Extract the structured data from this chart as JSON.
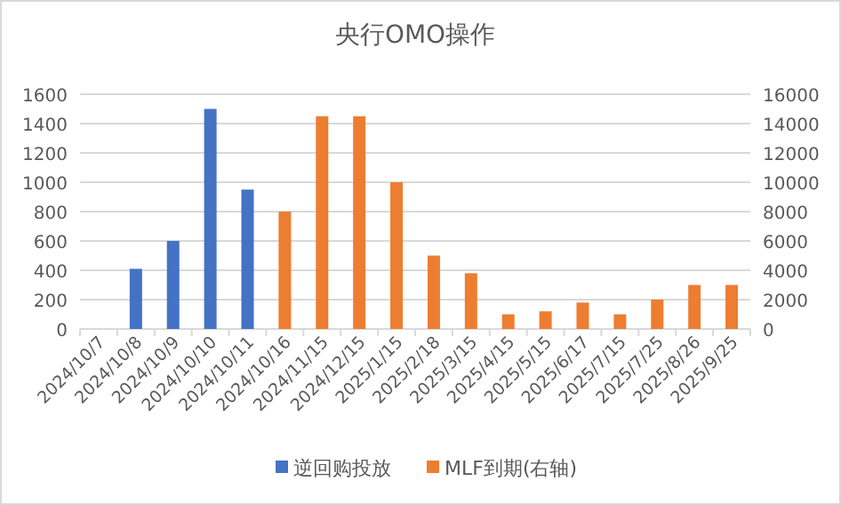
{
  "chart_data": {
    "type": "bar",
    "title": "央行OMO操作",
    "categories": [
      "2024/10/7",
      "2024/10/8",
      "2024/10/9",
      "2024/10/10",
      "2024/10/11",
      "2024/10/16",
      "2024/11/15",
      "2024/12/15",
      "2025/1/15",
      "2025/2/18",
      "2025/3/15",
      "2025/4/15",
      "2025/5/15",
      "2025/6/17",
      "2025/7/15",
      "2025/7/25",
      "2025/8/26",
      "2025/9/25"
    ],
    "series": [
      {
        "name": "逆回购投放",
        "color": "#4472c4",
        "values": [
          null,
          410,
          600,
          1500,
          950,
          null,
          null,
          null,
          null,
          null,
          null,
          null,
          null,
          null,
          null,
          null,
          null,
          null
        ]
      },
      {
        "name": "MLF到期(右轴)",
        "color": "#ed7d31",
        "axis": "y2",
        "values": [
          null,
          null,
          null,
          null,
          null,
          8000,
          14500,
          14500,
          10000,
          5000,
          3800,
          1000,
          1200,
          1800,
          1000,
          2000,
          3000,
          3000
        ]
      }
    ],
    "ylim": [
      0,
      1600
    ],
    "yticks": [
      0,
      200,
      400,
      600,
      800,
      1000,
      1200,
      1400,
      1600
    ],
    "y2lim": [
      0,
      16000
    ],
    "y2ticks": [
      0,
      2000,
      4000,
      6000,
      8000,
      10000,
      12000,
      14000,
      16000
    ],
    "grid": "y",
    "legend": "bottom"
  }
}
